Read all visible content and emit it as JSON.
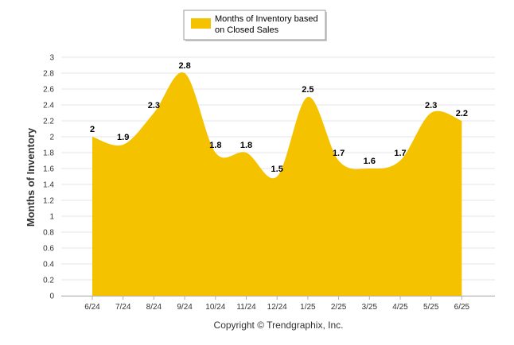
{
  "chart_data": {
    "type": "area",
    "title": "",
    "xlabel": "",
    "ylabel": "Months of Inventory",
    "categories": [
      "6/24",
      "7/24",
      "8/24",
      "9/24",
      "10/24",
      "11/24",
      "12/24",
      "1/25",
      "2/25",
      "3/25",
      "4/25",
      "5/25",
      "6/25"
    ],
    "series": [
      {
        "name": "Months of Inventory based on Closed Sales",
        "values": [
          2,
          1.9,
          2.3,
          2.8,
          1.8,
          1.8,
          1.5,
          2.5,
          1.7,
          1.6,
          1.7,
          2.3,
          2.2
        ],
        "color": "#f5c200"
      }
    ],
    "ylim": [
      0,
      3
    ],
    "yticks": [
      "0",
      "0.2",
      "0.4",
      "0.6",
      "0.8",
      "1",
      "1.2",
      "1.4",
      "1.6",
      "1.8",
      "2",
      "2.2",
      "2.4",
      "2.6",
      "2.8",
      "3"
    ],
    "grid": true,
    "legend_position": "top",
    "smooth": true
  },
  "legend": {
    "line1": "Months of Inventory based",
    "line2": "on Closed Sales"
  },
  "copyright": "Copyright © Trendgraphix, Inc."
}
